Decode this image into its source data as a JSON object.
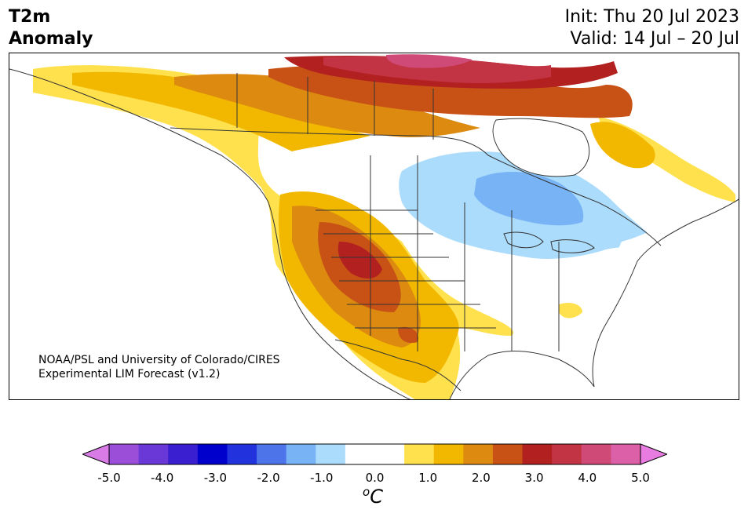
{
  "title": {
    "variable": "T2m\nAnomaly",
    "init": "Init: Thu 20 Jul 2023",
    "valid": "Valid: 14 Jul – 20 Jul"
  },
  "credit": {
    "line1": "NOAA/PSL and University of Colorado/CIRES",
    "line2": "Experimental LIM Forecast (v1.2)"
  },
  "colorbar": {
    "unit_base": "C",
    "unit_sup": "o",
    "ticks": [
      "-5.0",
      "-4.0",
      "-3.0",
      "-2.0",
      "-1.0",
      "0.0",
      "1.0",
      "2.0",
      "3.0",
      "4.0",
      "5.0"
    ],
    "colors": {
      "under": "#d87be6",
      "bins": [
        "#9b4fd8",
        "#6a38d6",
        "#3a1fd0",
        "#0000cc",
        "#2233dd",
        "#4d74e8",
        "#78b4f5",
        "#acdcfc",
        "#ffffff",
        "#ffffff",
        "#ffe14d",
        "#f2b800",
        "#dc8a10",
        "#c85216",
        "#b22020",
        "#c23444",
        "#d04a78",
        "#dc60a8"
      ],
      "over": "#e87ce0"
    }
  },
  "map_colors": {
    "warm1": "#ffe14d",
    "warm2": "#f2b800",
    "warm3": "#dc8a10",
    "warm4": "#c85216",
    "warm5": "#b22020",
    "warm6": "#c23444",
    "warm7": "#d04a78",
    "cool1": "#acdcfc",
    "cool2": "#78b4f5",
    "ocean": "#ffffff",
    "coast": "#333333"
  }
}
